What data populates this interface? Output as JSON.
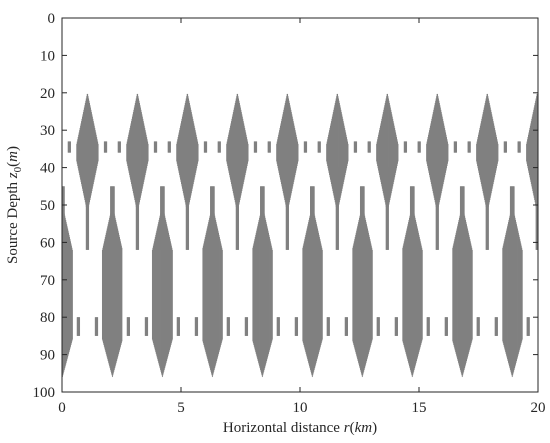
{
  "chart_data": {
    "type": "heatmap",
    "title": "",
    "xlabel": "Horizontal distance r(km)",
    "xlabel_parts": [
      "Horizontal distance ",
      "r",
      "(",
      "km",
      ")"
    ],
    "ylabel": "Source Depth z0(m)",
    "ylabel_parts": [
      "Source Depth ",
      "z",
      "0",
      "(",
      "m",
      ")"
    ],
    "xlim": [
      0,
      20
    ],
    "ylim": [
      0,
      100
    ],
    "y_reversed": true,
    "x_ticks": [
      0,
      5,
      10,
      15,
      20
    ],
    "x_tick_labels": [
      "0",
      "5",
      "10",
      "15",
      "20"
    ],
    "y_ticks": [
      0,
      10,
      20,
      30,
      40,
      50,
      60,
      70,
      80,
      90,
      100
    ],
    "y_tick_labels": [
      "0",
      "10",
      "20",
      "30",
      "40",
      "50",
      "60",
      "70",
      "80",
      "90",
      "100"
    ],
    "grid": false,
    "legend": "none",
    "colors": {
      "filled": "#808080",
      "empty": "#ffffff",
      "axis": "#262626"
    },
    "pattern": {
      "period_km": 2.1,
      "upper_band_depth_m": [
        20,
        52
      ],
      "lower_band_depth_m": [
        45,
        96
      ],
      "description_values": "binary map: gray = region present, white = absent"
    }
  }
}
